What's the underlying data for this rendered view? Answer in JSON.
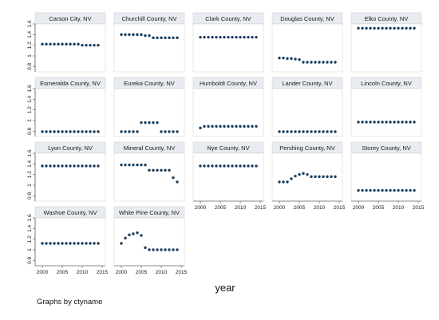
{
  "chart_data": {
    "type": "scatter",
    "xlabel": "year",
    "note": "Graphs by ctyname",
    "xlim": [
      1999,
      2015
    ],
    "ylim": [
      0.7,
      1.6
    ],
    "x_ticks": [
      "2000",
      "2005",
      "2010",
      "2015"
    ],
    "y_ticks": [
      "0.8",
      "1",
      "1.2",
      "1.4",
      "1.6"
    ],
    "grid": false,
    "colors": {
      "marker": "#1c3f5e",
      "panel_background": "#ffffff",
      "header_background": "#e8ebf0",
      "figure_background": "#ffffff",
      "axis": "#333333"
    },
    "x": [
      2000,
      2001,
      2002,
      2003,
      2004,
      2005,
      2006,
      2007,
      2008,
      2009,
      2010,
      2011,
      2012,
      2013,
      2014
    ],
    "panels": [
      {
        "title": "Carson City, NV",
        "values": [
          1.22,
          1.22,
          1.22,
          1.22,
          1.22,
          1.22,
          1.22,
          1.22,
          1.22,
          1.22,
          1.2,
          1.2,
          1.2,
          1.2,
          1.2
        ]
      },
      {
        "title": "Churchill County, NV",
        "values": [
          1.4,
          1.4,
          1.4,
          1.4,
          1.4,
          1.4,
          1.38,
          1.38,
          1.34,
          1.34,
          1.34,
          1.34,
          1.34,
          1.34,
          1.34
        ]
      },
      {
        "title": "Clark County, NV",
        "values": [
          1.35,
          1.35,
          1.35,
          1.35,
          1.35,
          1.35,
          1.35,
          1.35,
          1.35,
          1.35,
          1.35,
          1.35,
          1.35,
          1.35,
          1.35
        ]
      },
      {
        "title": "Douglas County, NV",
        "values": [
          0.96,
          0.96,
          0.95,
          0.95,
          0.94,
          0.93,
          0.88,
          0.88,
          0.88,
          0.88,
          0.88,
          0.88,
          0.88,
          0.88,
          0.88
        ]
      },
      {
        "title": "Elko County, NV",
        "values": [
          1.52,
          1.52,
          1.52,
          1.52,
          1.52,
          1.52,
          1.52,
          1.52,
          1.52,
          1.52,
          1.52,
          1.52,
          1.52,
          1.52,
          1.52
        ]
      },
      {
        "title": "Esmeralda County, NV",
        "values": [
          0.79,
          0.79,
          0.79,
          0.79,
          0.79,
          0.79,
          0.79,
          0.79,
          0.79,
          0.79,
          0.79,
          0.79,
          0.79,
          0.79,
          0.79
        ]
      },
      {
        "title": "Eureka County, NV",
        "values": [
          0.79,
          0.79,
          0.79,
          0.79,
          0.79,
          0.96,
          0.96,
          0.96,
          0.96,
          0.96,
          0.79,
          0.79,
          0.79,
          0.79,
          0.79
        ]
      },
      {
        "title": "Humboldt County, NV",
        "values": [
          0.86,
          0.89,
          0.89,
          0.89,
          0.89,
          0.89,
          0.89,
          0.89,
          0.89,
          0.89,
          0.89,
          0.89,
          0.89,
          0.89,
          0.89
        ]
      },
      {
        "title": "Lander County, NV",
        "values": [
          0.79,
          0.79,
          0.79,
          0.79,
          0.79,
          0.79,
          0.79,
          0.79,
          0.79,
          0.79,
          0.79,
          0.79,
          0.79,
          0.79,
          0.79
        ]
      },
      {
        "title": "Lincoln County, NV",
        "values": [
          0.97,
          0.97,
          0.97,
          0.97,
          0.97,
          0.97,
          0.97,
          0.97,
          0.97,
          0.97,
          0.97,
          0.97,
          0.97,
          0.97,
          0.97
        ]
      },
      {
        "title": "Lyon County, NV",
        "values": [
          1.36,
          1.36,
          1.36,
          1.36,
          1.36,
          1.36,
          1.36,
          1.36,
          1.36,
          1.36,
          1.36,
          1.36,
          1.36,
          1.36,
          1.36
        ]
      },
      {
        "title": "Mineral County, NV",
        "values": [
          1.38,
          1.38,
          1.38,
          1.38,
          1.38,
          1.38,
          1.38,
          1.28,
          1.28,
          1.28,
          1.28,
          1.28,
          1.28,
          1.14,
          1.06
        ]
      },
      {
        "title": "Nye County, NV",
        "values": [
          1.36,
          1.36,
          1.36,
          1.36,
          1.36,
          1.36,
          1.36,
          1.36,
          1.36,
          1.36,
          1.36,
          1.36,
          1.36,
          1.36,
          1.36
        ]
      },
      {
        "title": "Pershing County, NV",
        "values": [
          1.06,
          1.06,
          1.06,
          1.12,
          1.17,
          1.2,
          1.22,
          1.2,
          1.16,
          1.16,
          1.16,
          1.16,
          1.16,
          1.16,
          1.16
        ]
      },
      {
        "title": "Storey County, NV",
        "values": [
          0.9,
          0.9,
          0.9,
          0.9,
          0.9,
          0.9,
          0.9,
          0.9,
          0.9,
          0.9,
          0.9,
          0.9,
          0.9,
          0.9,
          0.9
        ]
      },
      {
        "title": "Washoe County, NV",
        "values": [
          1.12,
          1.12,
          1.12,
          1.12,
          1.12,
          1.12,
          1.12,
          1.12,
          1.12,
          1.12,
          1.12,
          1.12,
          1.12,
          1.12,
          1.12
        ]
      },
      {
        "title": "White Pine County, NV",
        "values": [
          1.12,
          1.22,
          1.28,
          1.3,
          1.32,
          1.27,
          1.04,
          1.0,
          1.0,
          1.0,
          1.0,
          1.0,
          1.0,
          1.0,
          1.0
        ]
      }
    ]
  }
}
